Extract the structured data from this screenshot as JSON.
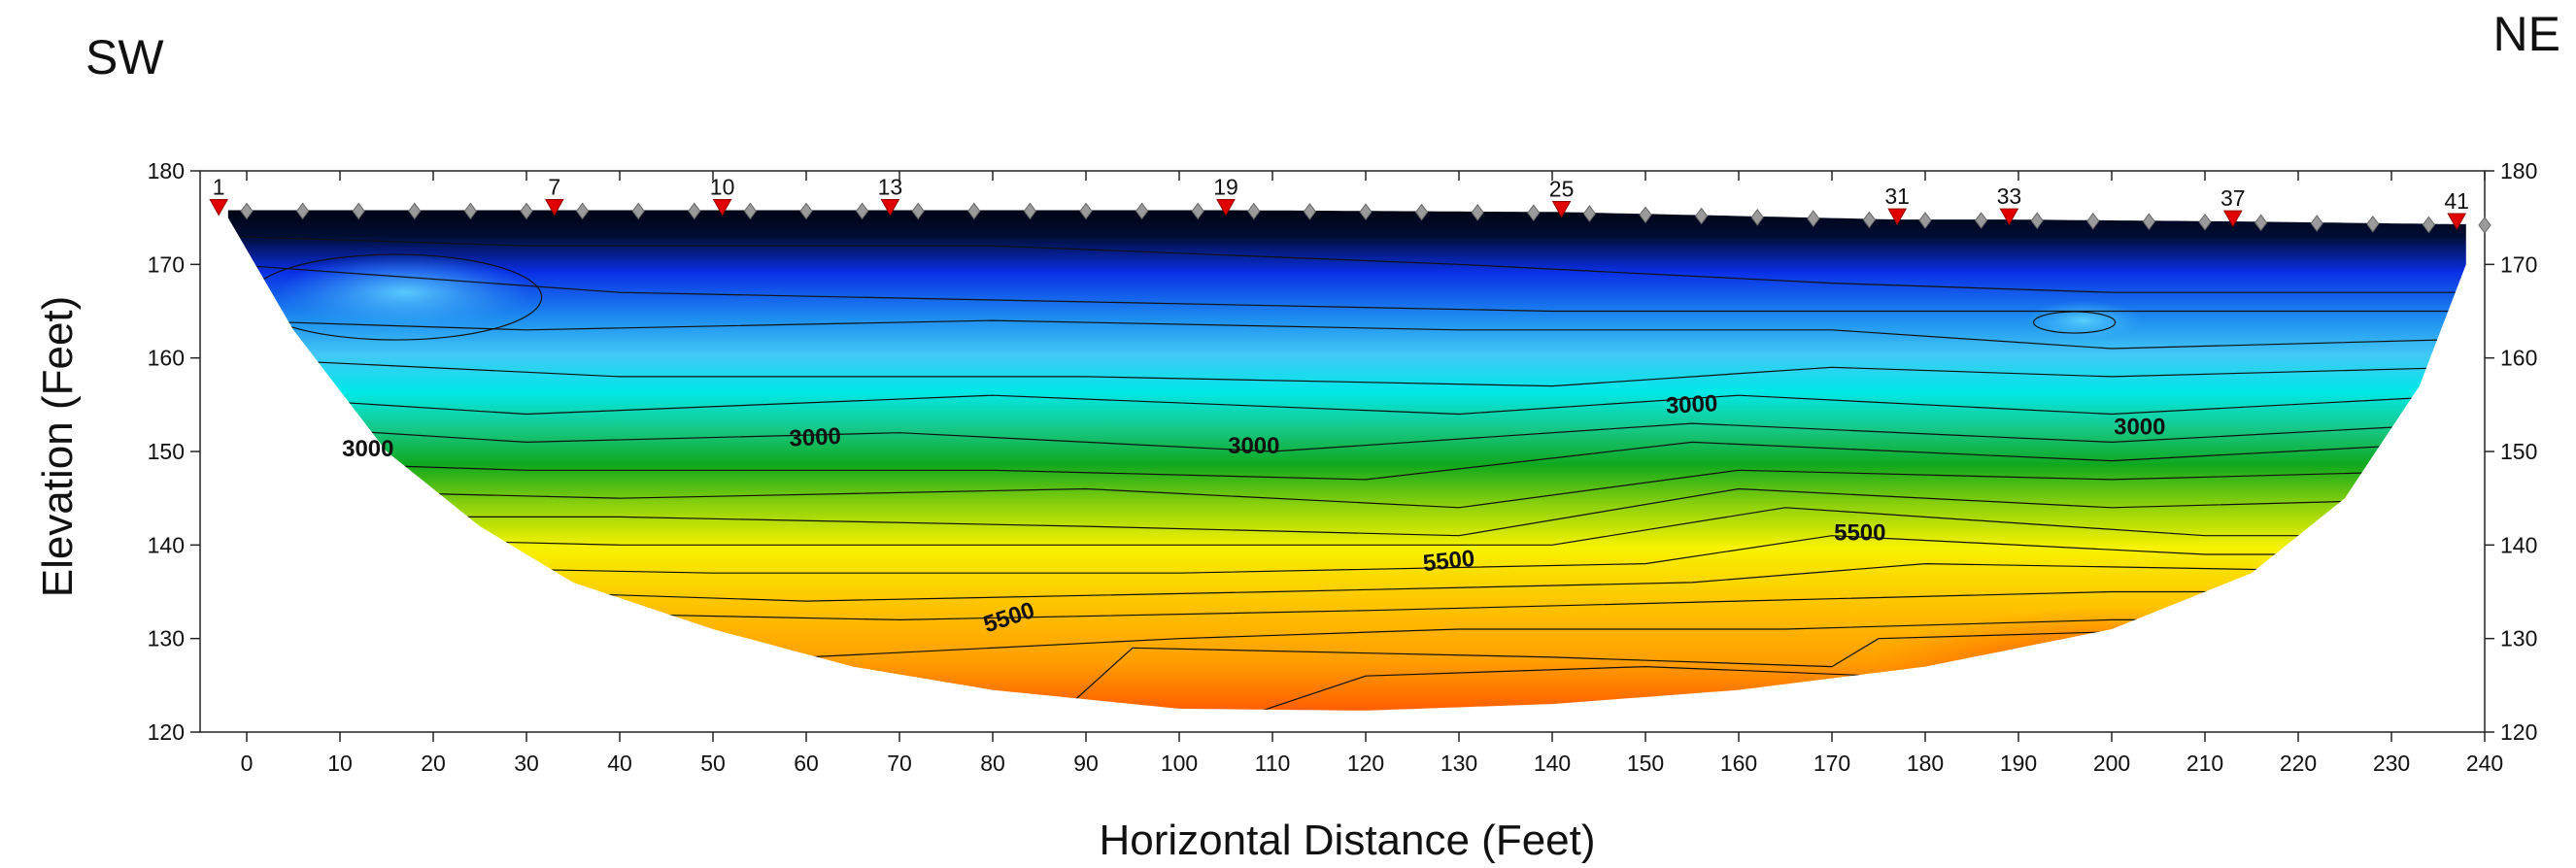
{
  "chart_data": {
    "type": "heatmap",
    "title": "",
    "left_direction": "SW",
    "right_direction": "NE",
    "xlabel": "Horizontal Distance (Feet)",
    "ylabel": "Elevation (Feet)",
    "xlim": [
      -5,
      240
    ],
    "ylim": [
      120,
      180
    ],
    "x_ticks": [
      0,
      10,
      20,
      30,
      40,
      50,
      60,
      70,
      80,
      90,
      100,
      110,
      120,
      130,
      140,
      150,
      160,
      170,
      180,
      190,
      200,
      210,
      220,
      230,
      240
    ],
    "x_tick_labels": [
      "0",
      "10",
      "20",
      "30",
      "40",
      "50",
      "60",
      "70",
      "80",
      "90",
      "100",
      "110",
      "120",
      "130",
      "140",
      "150",
      "160",
      "170",
      "180",
      "190",
      "200",
      "210",
      "220",
      "230",
      "240"
    ],
    "y_ticks": [
      120,
      130,
      140,
      150,
      160,
      170,
      180
    ],
    "y_tick_labels": [
      "120",
      "130",
      "140",
      "150",
      "160",
      "170",
      "180"
    ],
    "grid": false,
    "colors": {
      "low": "#000000",
      "blue": "#0a2fe6",
      "light_blue": "#42c8f5",
      "cyan": "#00e8e8",
      "green": "#0fa81e",
      "yellow": "#f7f200",
      "orange": "#ff9e00",
      "red": "#ff3a00",
      "electrode_marker": "#e00000",
      "sensor_marker": "#9a9a9a"
    },
    "electrodes": [
      {
        "label": "1",
        "x": -3,
        "y": 176
      },
      {
        "label": "7",
        "x": 33,
        "y": 176
      },
      {
        "label": "10",
        "x": 51,
        "y": 176
      },
      {
        "label": "13",
        "x": 69,
        "y": 176
      },
      {
        "label": "19",
        "x": 105,
        "y": 176
      },
      {
        "label": "25",
        "x": 141,
        "y": 175.8
      },
      {
        "label": "31",
        "x": 177,
        "y": 175
      },
      {
        "label": "33",
        "x": 189,
        "y": 175
      },
      {
        "label": "37",
        "x": 213,
        "y": 174.8
      },
      {
        "label": "41",
        "x": 237,
        "y": 174.5
      }
    ],
    "contour_labels": [
      {
        "text": "3000",
        "x": 13,
        "y": 149.5,
        "angle": 0
      },
      {
        "text": "3000",
        "x": 61,
        "y": 150.7,
        "angle": -3
      },
      {
        "text": "3000",
        "x": 108,
        "y": 149.8,
        "angle": 0
      },
      {
        "text": "3000",
        "x": 155,
        "y": 154.2,
        "angle": -3
      },
      {
        "text": "3000",
        "x": 203,
        "y": 151.8,
        "angle": 0
      },
      {
        "text": "5500",
        "x": 82,
        "y": 131.5,
        "angle": -18
      },
      {
        "text": "5500",
        "x": 129,
        "y": 137.5,
        "angle": -6
      },
      {
        "text": "5500",
        "x": 173,
        "y": 140.5,
        "angle": 0
      }
    ]
  }
}
